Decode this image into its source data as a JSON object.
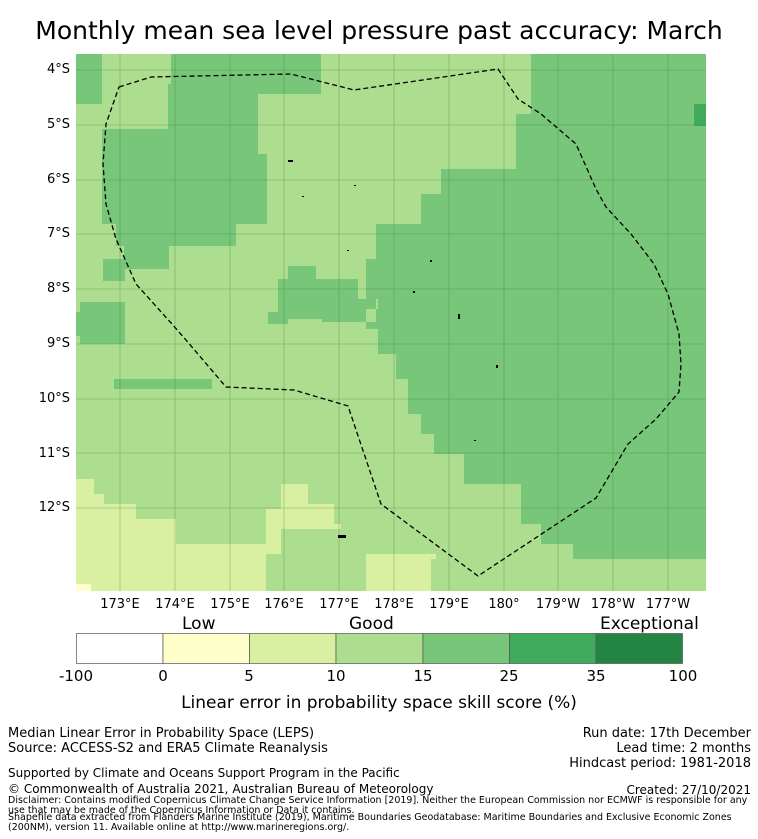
{
  "title": "Monthly mean sea level pressure past accuracy: March",
  "map": {
    "latitude_labels": [
      "4°S",
      "5°S",
      "6°S",
      "7°S",
      "8°S",
      "9°S",
      "10°S",
      "11°S",
      "12°S"
    ],
    "longitude_labels": [
      "173°E",
      "174°E",
      "175°E",
      "176°E",
      "177°E",
      "178°E",
      "179°E",
      "180°",
      "179°W",
      "178°W",
      "177°W"
    ],
    "colors": {
      "very_low": "#ffffcc",
      "low": "#d9f0a3",
      "moderate": "#addd8e",
      "good": "#78c679",
      "high": "#41ab5d",
      "exceptional": "#238443"
    },
    "region_boundary": "dashed black line"
  },
  "colorbar": {
    "captions": {
      "low": "Low",
      "good": "Good",
      "exceptional": "Exceptional"
    },
    "ticks": [
      "-100",
      "0",
      "5",
      "10",
      "15",
      "25",
      "35",
      "100"
    ],
    "segment_colors": [
      "#ffffff",
      "#ffffcc",
      "#d9f0a3",
      "#addd8e",
      "#78c679",
      "#41ab5d",
      "#238443"
    ],
    "axis_label": "Linear error in probability space skill score (%)"
  },
  "footer": {
    "method": "Median Linear Error in Probability Space (LEPS)",
    "source": "Source: ACCESS-S2 and ERA5 Climate Reanalysis",
    "support": "Supported by Climate and Oceans Support Program in the Pacific",
    "copyright": "© Commonwealth of Australia 2021, Australian Bureau of Meteorology",
    "disclaimer": "Disclaimer: Contains modified Copernicus Climate Change Service Information [2019]. Neither the European Commission nor ECMWF is responsible for any use that may be made of the Copernicus Information or Data it contains.",
    "shapefile": "Shapefile data extracted from Flanders Marine Institute (2019), Maritime Boundaries Geodatabase: Maritime Boundaries and Exclusive Economic Zones (200NM), version 11. Available online at http://www.marineregions.org/.",
    "run_date": "Run date: 17th December",
    "lead_time": "Lead time: 2 months",
    "hindcast": "Hindcast period: 1981-2018",
    "created": "Created: 27/10/2021"
  }
}
